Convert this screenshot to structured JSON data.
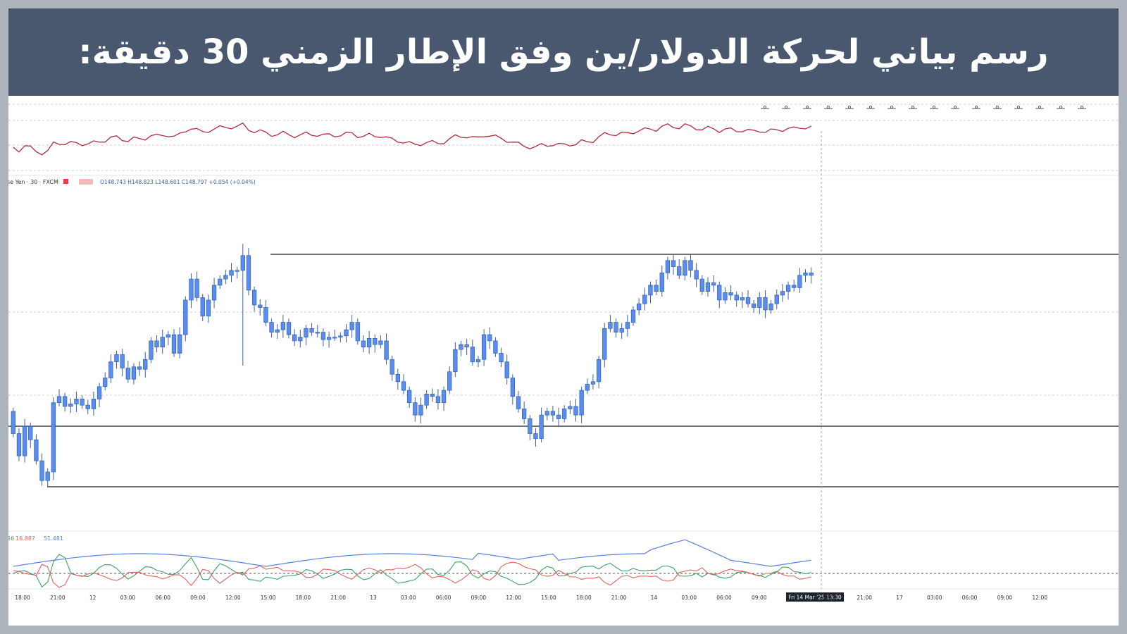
{
  "banner": {
    "title": "رسم بياني لحركة الدولار/ين وفق الإطار الزمني 30 دقيقة:"
  },
  "colors": {
    "banner_bg": "#4a586f",
    "candle_fill": "#5b8def",
    "candle_border": "#2f5fb3",
    "wick": "#3a5fa8",
    "top_indicator": "#b22c3c",
    "dmi_plus": "#3ca064",
    "dmi_minus": "#e06060",
    "adx": "#5a7fd8",
    "levels": "#222222"
  },
  "icons": [
    "line-tool-icon",
    "pencil-icon",
    "bars-icon",
    "link-icon",
    "fork-icon",
    "brush-icon",
    "circle-icon",
    "wave-icon",
    "zigzag-icon",
    "grid-icon",
    "down-arrow-icon",
    "ruler-icon",
    "measure-icon",
    "box-icon",
    "text-icon",
    "more-icon"
  ],
  "chart_data": {
    "type": "candlestick",
    "legend": {
      "symbol": "se Yen · 30 · FXCM",
      "ohlc": "O148.743 H148.823 L148.601 C148.797 +0.054 (+0.04%)"
    },
    "time_labels": [
      "18:00",
      "21:00",
      "12",
      "03:00",
      "06:00",
      "09:00",
      "12:00",
      "15:00",
      "18:00",
      "21:00",
      "13",
      "03:00",
      "06:00",
      "09:00",
      "12:00",
      "15:00",
      "18:00",
      "21:00",
      "14",
      "03:00",
      "06:00",
      "09:00",
      "Fri 14 Mar '25   13:30",
      "18:00",
      "21:00",
      "17",
      "03:00",
      "06:00",
      "09:00",
      "12:00"
    ],
    "crosshair_label": "Fri 14 Mar '25   13:30",
    "dmi_legend": {
      "plus": "56",
      "minus": "16.887",
      "adx": "51.481"
    },
    "levels": [
      149.25,
      147.86,
      147.37
    ],
    "closes": [
      147.8,
      147.62,
      147.86,
      147.75,
      147.58,
      147.42,
      147.49,
      148.05,
      148.1,
      148.02,
      148.04,
      148.08,
      148.03,
      148.0,
      148.08,
      148.18,
      148.25,
      148.38,
      148.44,
      148.33,
      148.24,
      148.34,
      148.32,
      148.4,
      148.55,
      148.5,
      148.58,
      148.6,
      148.45,
      148.6,
      148.88,
      149.05,
      148.9,
      148.75,
      148.88,
      149.0,
      149.05,
      149.08,
      149.12,
      149.12,
      149.24,
      148.96,
      148.84,
      148.82,
      148.7,
      148.62,
      148.64,
      148.7,
      148.6,
      148.55,
      148.58,
      148.65,
      148.62,
      148.62,
      148.56,
      148.58,
      148.58,
      148.59,
      148.64,
      148.7,
      148.55,
      148.5,
      148.57,
      148.52,
      148.55,
      148.4,
      148.28,
      148.22,
      148.15,
      148.05,
      147.95,
      148.03,
      148.12,
      148.1,
      148.05,
      148.15,
      148.3,
      148.48,
      148.52,
      148.5,
      148.38,
      148.4,
      148.6,
      148.55,
      148.45,
      148.38,
      148.25,
      148.1,
      148.0,
      147.92,
      147.8,
      147.76,
      147.95,
      147.98,
      147.95,
      147.92,
      148.0,
      148.02,
      147.95,
      148.15,
      148.2,
      148.22,
      148.4,
      148.65,
      148.7,
      148.62,
      148.65,
      148.7,
      148.8,
      148.85,
      148.92,
      149.0,
      148.95,
      149.1,
      149.2,
      149.15,
      149.08,
      149.2,
      149.12,
      149.05,
      148.95,
      149.02,
      149.0,
      148.88,
      148.94,
      148.92,
      148.88,
      148.9,
      148.85,
      148.82,
      148.9,
      148.8,
      148.85,
      148.92,
      148.95,
      149.0,
      148.98,
      149.08,
      149.1,
      149.08
    ]
  }
}
